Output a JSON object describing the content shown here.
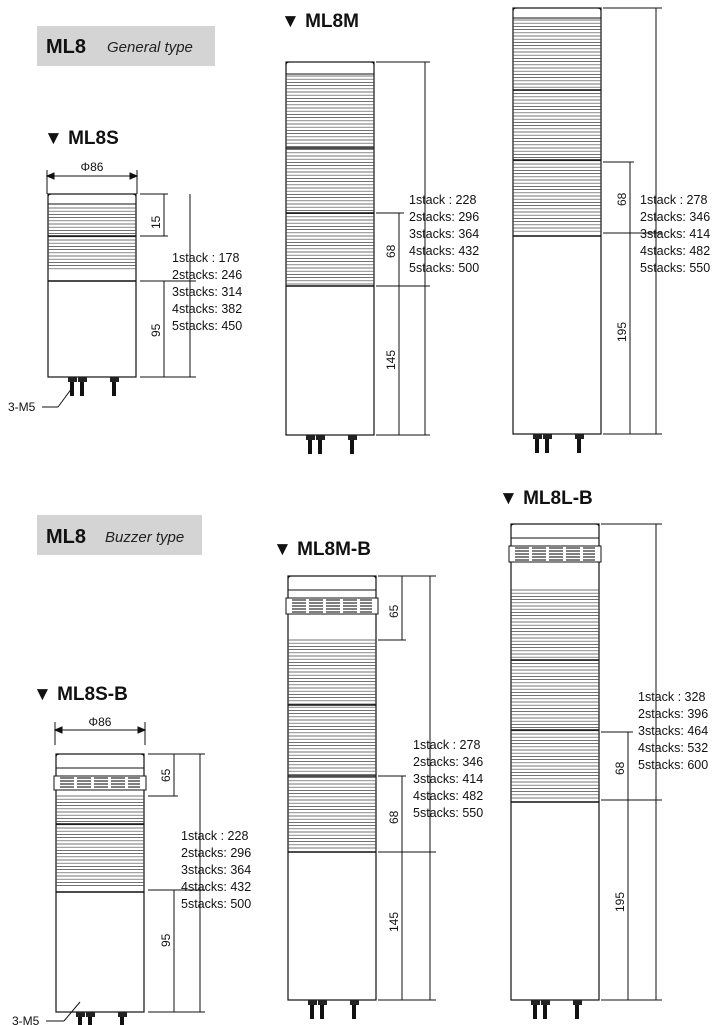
{
  "general": {
    "badge": {
      "main": "ML8",
      "sub": "General type"
    },
    "ML8S": {
      "title": "▼ ML8S",
      "dia": "Φ86",
      "d1": "15",
      "d2": "95",
      "bolt": "3-M5",
      "specs": [
        "1stack : 178",
        "2stacks: 246",
        "3stacks: 314",
        "4stacks: 382",
        "5stacks: 450"
      ]
    },
    "ML8M": {
      "title": "▼ ML8M",
      "d1": "68",
      "d2": "145",
      "specs": [
        "1stack : 228",
        "2stacks: 296",
        "3stacks: 364",
        "4stacks: 432",
        "5stacks: 500"
      ]
    },
    "ML8L": {
      "d1": "68",
      "d2": "195",
      "specs": [
        "1stack : 278",
        "2stacks: 346",
        "3stacks: 414",
        "4stacks: 482",
        "5stacks: 550"
      ]
    }
  },
  "buzzer": {
    "badge": {
      "main": "ML8",
      "sub": "Buzzer type"
    },
    "ML8SB": {
      "title": "▼ ML8S-B",
      "dia": "Φ86",
      "d1": "65",
      "d2": "95",
      "bolt": "3-M5",
      "specs": [
        "1stack : 228",
        "2stacks: 296",
        "3stacks: 364",
        "4stacks: 432",
        "5stacks: 500"
      ]
    },
    "ML8MB": {
      "title": "▼ ML8M-B",
      "d1": "65",
      "d2": "68",
      "d3": "145",
      "specs": [
        "1stack : 278",
        "2stacks: 346",
        "3stacks: 414",
        "4stacks: 482",
        "5stacks: 550"
      ]
    },
    "ML8LB": {
      "title": "▼ ML8L-B",
      "d1": "68",
      "d2": "195",
      "specs": [
        "1stack : 328",
        "2stacks: 396",
        "3stacks: 464",
        "4stacks: 532",
        "5stacks: 600"
      ]
    }
  }
}
